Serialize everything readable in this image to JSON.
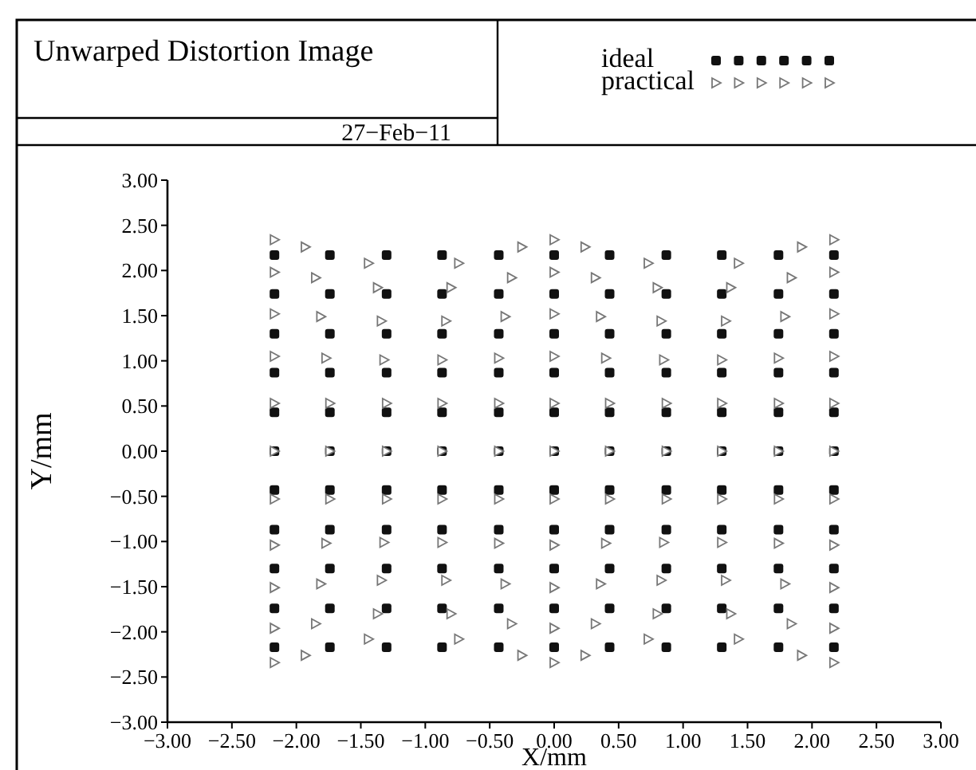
{
  "chart_data": {
    "type": "scatter",
    "title": "Unwarped Distortion Image",
    "subtitle": "27−Feb−11",
    "xlabel": "X/mm",
    "ylabel": "Y/mm",
    "legend": "top right",
    "grid": false,
    "xlim": [
      -3,
      3
    ],
    "ylim": [
      -3,
      3
    ],
    "xticks": [
      {
        "value": -3,
        "label": "−3.00"
      },
      {
        "value": -2.5,
        "label": "−2.50"
      },
      {
        "value": -2,
        "label": "−2.00"
      },
      {
        "value": -1.5,
        "label": "−1.50"
      },
      {
        "value": -1,
        "label": "−1.00"
      },
      {
        "value": -0.5,
        "label": "−0.50"
      },
      {
        "value": 0,
        "label": "0.00"
      },
      {
        "value": 0.5,
        "label": "0.50"
      },
      {
        "value": 1,
        "label": "1.00"
      },
      {
        "value": 1.5,
        "label": "1.50"
      },
      {
        "value": 2,
        "label": "2.00"
      },
      {
        "value": 2.5,
        "label": "2.50"
      },
      {
        "value": 3,
        "label": "3.00"
      }
    ],
    "yticks": [
      {
        "value": -3,
        "label": "−3.00"
      },
      {
        "value": -2.5,
        "label": "−2.50"
      },
      {
        "value": -2,
        "label": "−2.00"
      },
      {
        "value": -1.5,
        "label": "−1.50"
      },
      {
        "value": -1,
        "label": "−1.00"
      },
      {
        "value": -0.5,
        "label": "−0.50"
      },
      {
        "value": 0,
        "label": "0.00"
      },
      {
        "value": 0.5,
        "label": "0.50"
      },
      {
        "value": 1,
        "label": "1.00"
      },
      {
        "value": 1.5,
        "label": "1.50"
      },
      {
        "value": 2,
        "label": "2.00"
      },
      {
        "value": 2.5,
        "label": "2.50"
      },
      {
        "value": 3,
        "label": "3.00"
      }
    ],
    "series": [
      {
        "name": "ideal",
        "color": "#111111",
        "marker": "square",
        "x": [
          -2.17,
          -1.74,
          -1.3,
          -0.87,
          -0.43,
          0,
          0.43,
          0.87,
          1.3,
          1.74,
          2.17,
          -2.17,
          -1.74,
          -1.3,
          -0.87,
          -0.43,
          0,
          0.43,
          0.87,
          1.3,
          1.74,
          2.17,
          -2.17,
          -1.74,
          -1.3,
          -0.87,
          -0.43,
          0,
          0.43,
          0.87,
          1.3,
          1.74,
          2.17,
          -2.17,
          -1.74,
          -1.3,
          -0.87,
          -0.43,
          0,
          0.43,
          0.87,
          1.3,
          1.74,
          2.17,
          -2.17,
          -1.74,
          -1.3,
          -0.87,
          -0.43,
          0,
          0.43,
          0.87,
          1.3,
          1.74,
          2.17,
          -2.17,
          -1.74,
          -1.3,
          -0.87,
          -0.43,
          0,
          0.43,
          0.87,
          1.3,
          1.74,
          2.17,
          -2.17,
          -1.74,
          -1.3,
          -0.87,
          -0.43,
          0,
          0.43,
          0.87,
          1.3,
          1.74,
          2.17,
          -2.17,
          -1.74,
          -1.3,
          -0.87,
          -0.43,
          0,
          0.43,
          0.87,
          1.3,
          1.74,
          2.17,
          -2.17,
          -1.74,
          -1.3,
          -0.87,
          -0.43,
          0,
          0.43,
          0.87,
          1.3,
          1.74,
          2.17,
          -2.17,
          -1.74,
          -1.3,
          -0.87,
          -0.43,
          0,
          0.43,
          0.87,
          1.3,
          1.74,
          2.17,
          -2.17,
          -1.74,
          -1.3,
          -0.87,
          -0.43,
          0,
          0.43,
          0.87,
          1.3,
          1.74,
          2.17
        ],
        "values": [
          2.17,
          2.17,
          2.17,
          2.17,
          2.17,
          2.17,
          2.17,
          2.17,
          2.17,
          2.17,
          2.17,
          1.74,
          1.74,
          1.74,
          1.74,
          1.74,
          1.74,
          1.74,
          1.74,
          1.74,
          1.74,
          1.74,
          1.3,
          1.3,
          1.3,
          1.3,
          1.3,
          1.3,
          1.3,
          1.3,
          1.3,
          1.3,
          1.3,
          0.87,
          0.87,
          0.87,
          0.87,
          0.87,
          0.87,
          0.87,
          0.87,
          0.87,
          0.87,
          0.87,
          0.43,
          0.43,
          0.43,
          0.43,
          0.43,
          0.43,
          0.43,
          0.43,
          0.43,
          0.43,
          0.43,
          0,
          0,
          0,
          0,
          0,
          0,
          0,
          0,
          0,
          0,
          0,
          -0.43,
          -0.43,
          -0.43,
          -0.43,
          -0.43,
          -0.43,
          -0.43,
          -0.43,
          -0.43,
          -0.43,
          -0.43,
          -0.87,
          -0.87,
          -0.87,
          -0.87,
          -0.87,
          -0.87,
          -0.87,
          -0.87,
          -0.87,
          -0.87,
          -0.87,
          -1.3,
          -1.3,
          -1.3,
          -1.3,
          -1.3,
          -1.3,
          -1.3,
          -1.3,
          -1.3,
          -1.3,
          -1.3,
          -1.74,
          -1.74,
          -1.74,
          -1.74,
          -1.74,
          -1.74,
          -1.74,
          -1.74,
          -1.74,
          -1.74,
          -1.74,
          -2.17,
          -2.17,
          -2.17,
          -2.17,
          -2.17,
          -2.17,
          -2.17,
          -2.17,
          -2.17,
          -2.17,
          -2.17
        ]
      },
      {
        "name": "practical",
        "color": "#777777",
        "marker": "triangle",
        "x": [
          -2.17,
          -1.93,
          -1.44,
          -0.74,
          -0.25,
          0,
          0.24,
          0.73,
          1.43,
          1.92,
          2.17,
          -2.17,
          -1.85,
          -1.37,
          -0.8,
          -0.33,
          0,
          0.32,
          0.8,
          1.37,
          1.84,
          2.17,
          -2.17,
          -1.81,
          -1.34,
          -0.84,
          -0.38,
          0,
          0.36,
          0.83,
          1.33,
          1.79,
          2.17,
          -2.17,
          -1.77,
          -1.32,
          -0.87,
          -0.43,
          0,
          0.4,
          0.85,
          1.3,
          1.74,
          2.17,
          -2.17,
          -1.74,
          -1.3,
          -0.87,
          -0.43,
          0,
          0.43,
          0.87,
          1.3,
          1.74,
          2.17,
          -2.17,
          -1.74,
          -1.3,
          -0.87,
          -0.43,
          0,
          0.43,
          0.87,
          1.3,
          1.74,
          2.17,
          -2.17,
          -1.74,
          -1.3,
          -0.87,
          -0.43,
          0,
          0.43,
          0.87,
          1.3,
          1.74,
          2.17,
          -2.17,
          -1.77,
          -1.32,
          -0.87,
          -0.43,
          0,
          0.4,
          0.85,
          1.3,
          1.74,
          2.17,
          -2.17,
          -1.81,
          -1.34,
          -0.84,
          -0.38,
          0,
          0.36,
          0.83,
          1.33,
          1.79,
          2.17,
          -2.17,
          -1.85,
          -1.37,
          -0.8,
          -0.33,
          0,
          0.32,
          0.8,
          1.37,
          1.84,
          2.17,
          -2.17,
          -1.93,
          -1.44,
          -0.74,
          -0.25,
          0,
          0.24,
          0.73,
          1.43,
          1.92,
          2.17
        ],
        "values": [
          2.34,
          2.26,
          2.08,
          2.08,
          2.26,
          2.34,
          2.26,
          2.08,
          2.08,
          2.26,
          2.34,
          1.98,
          1.92,
          1.81,
          1.81,
          1.92,
          1.98,
          1.92,
          1.81,
          1.81,
          1.92,
          1.98,
          1.52,
          1.49,
          1.44,
          1.44,
          1.49,
          1.52,
          1.49,
          1.44,
          1.44,
          1.49,
          1.52,
          1.05,
          1.03,
          1.01,
          1.01,
          1.03,
          1.05,
          1.03,
          1.01,
          1.01,
          1.03,
          1.05,
          0.53,
          0.53,
          0.53,
          0.53,
          0.53,
          0.53,
          0.53,
          0.53,
          0.53,
          0.53,
          0.53,
          0,
          0,
          0,
          0,
          0,
          0,
          0,
          0,
          0,
          0,
          0,
          -0.53,
          -0.53,
          -0.53,
          -0.53,
          -0.53,
          -0.53,
          -0.53,
          -0.53,
          -0.53,
          -0.53,
          -0.53,
          -1.04,
          -1.02,
          -1.01,
          -1.01,
          -1.02,
          -1.04,
          -1.02,
          -1.01,
          -1.01,
          -1.02,
          -1.04,
          -1.51,
          -1.47,
          -1.43,
          -1.43,
          -1.47,
          -1.51,
          -1.47,
          -1.43,
          -1.43,
          -1.47,
          -1.51,
          -1.96,
          -1.91,
          -1.8,
          -1.8,
          -1.91,
          -1.96,
          -1.91,
          -1.8,
          -1.8,
          -1.91,
          -1.96,
          -2.34,
          -2.26,
          -2.08,
          -2.08,
          -2.26,
          -2.34,
          -2.26,
          -2.08,
          -2.08,
          -2.26,
          -2.34
        ]
      }
    ]
  }
}
